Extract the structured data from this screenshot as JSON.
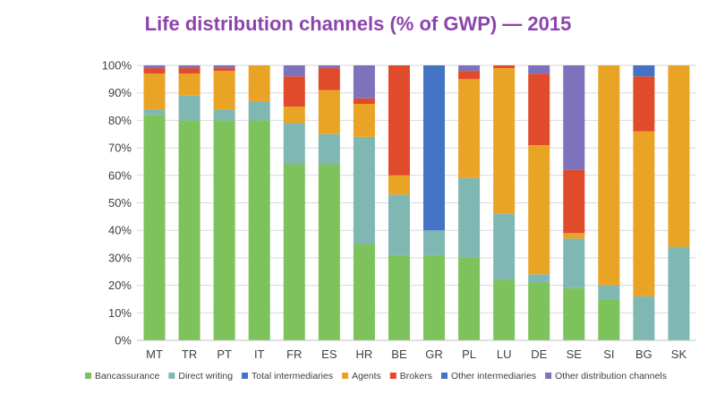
{
  "chart_data": {
    "type": "bar",
    "stacked": true,
    "title": "Life distribution channels (% of GWP) — 2015",
    "title_color": "#8E44AD",
    "xlabel": "",
    "ylabel": "",
    "ylim": [
      0,
      100
    ],
    "y_ticks": [
      "0%",
      "10%",
      "20%",
      "30%",
      "40%",
      "50%",
      "60%",
      "70%",
      "80%",
      "90%",
      "100%"
    ],
    "y_tick_values": [
      0,
      10,
      20,
      30,
      40,
      50,
      60,
      70,
      80,
      90,
      100
    ],
    "grid": true,
    "legend_position": "bottom",
    "categories": [
      "MT",
      "TR",
      "PT",
      "IT",
      "FR",
      "ES",
      "HR",
      "BE",
      "GR",
      "PL",
      "LU",
      "DE",
      "SE",
      "SI",
      "BG",
      "SK"
    ],
    "series": [
      {
        "name": "Bancassurance",
        "color": "#7DC25B",
        "values": [
          82,
          80,
          80,
          80,
          64,
          64,
          35,
          31,
          31,
          30,
          22,
          21,
          19,
          15,
          0,
          0
        ]
      },
      {
        "name": "Direct writing",
        "color": "#7FB8B2",
        "values": [
          2,
          9,
          4,
          7,
          15,
          11,
          39,
          22,
          9,
          29,
          24,
          3,
          18,
          5,
          16,
          34
        ]
      },
      {
        "name": "Total intermediaries",
        "color": "#4472C4",
        "values": [
          0,
          0,
          0,
          0,
          0,
          0,
          0,
          0,
          60,
          0,
          0,
          0,
          0,
          0,
          0,
          0
        ]
      },
      {
        "name": "Agents",
        "color": "#E9A425",
        "values": [
          13,
          8,
          14,
          13,
          6,
          16,
          12,
          7,
          0,
          36,
          53,
          47,
          2,
          80,
          60,
          66
        ]
      },
      {
        "name": "Brokers",
        "color": "#E04B2B",
        "values": [
          2,
          2,
          1,
          0,
          11,
          8,
          2,
          40,
          0,
          3,
          1,
          26,
          23,
          0,
          20,
          0
        ]
      },
      {
        "name": "Other intermediaries",
        "color": "#4472C4",
        "values": [
          0,
          0,
          0,
          0,
          0,
          0,
          0,
          0,
          0,
          0,
          0,
          0,
          0,
          0,
          4,
          0
        ]
      },
      {
        "name": "Other distribution channels",
        "color": "#7E72BC",
        "values": [
          1,
          1,
          1,
          0,
          4,
          1,
          12,
          0,
          0,
          2,
          0,
          3,
          38,
          0,
          0,
          0
        ]
      }
    ]
  }
}
